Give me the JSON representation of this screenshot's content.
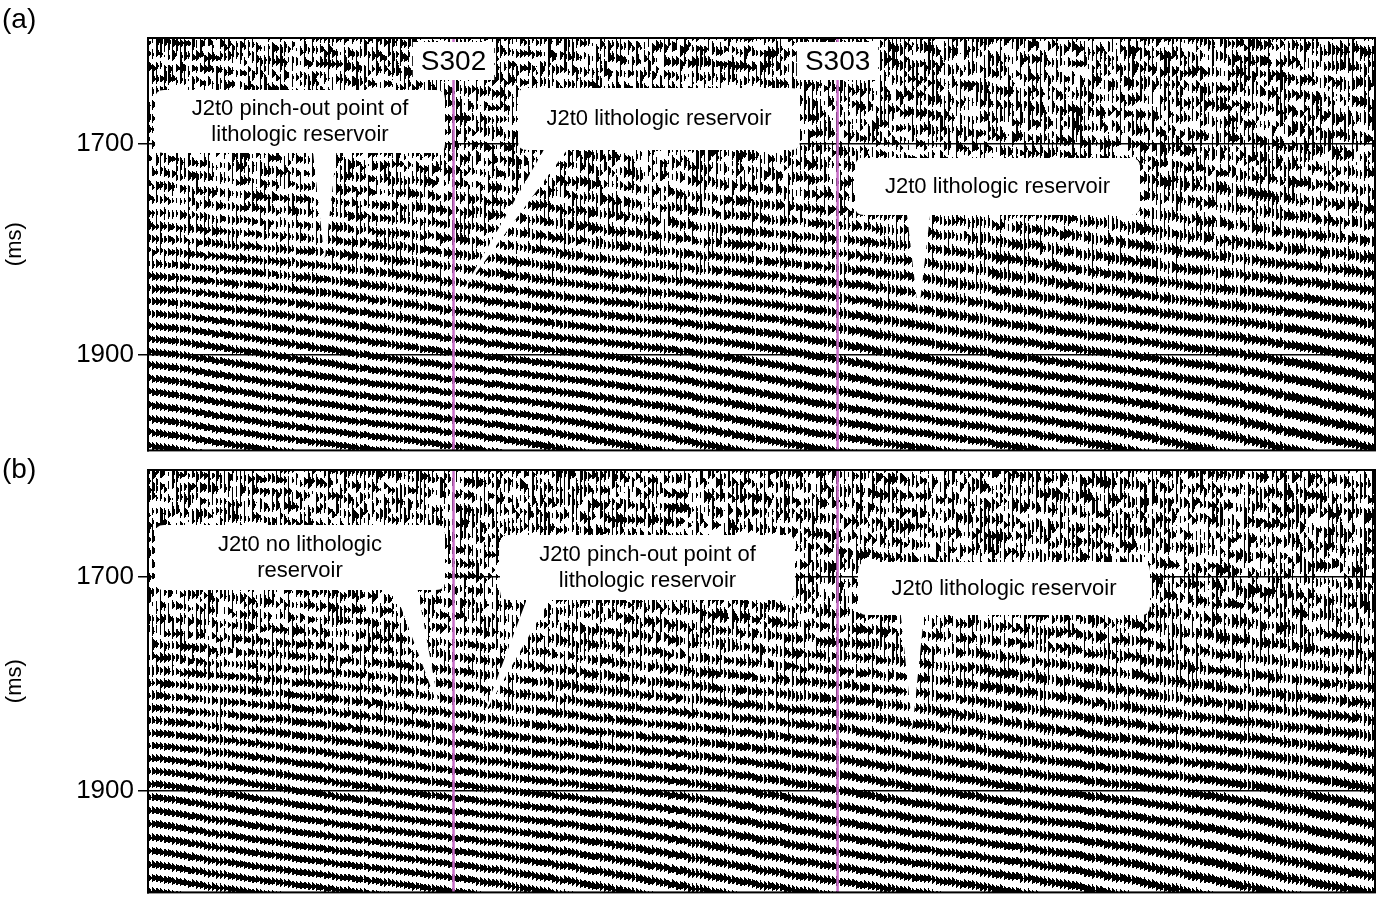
{
  "chart_data": [
    {
      "type": "seismic_section",
      "title": "(a)",
      "ylabel": "(ms)",
      "xlim": [
        0,
        1
      ],
      "ylim": [
        1600,
        1990
      ],
      "yticks": [
        1700,
        1900
      ],
      "tick_labels": "y",
      "grid": true,
      "wells": [
        {
          "name": "S302",
          "x": 0.249,
          "color": "#c86cc8"
        },
        {
          "name": "S303",
          "x": 0.562,
          "color": "#c86cc8"
        }
      ],
      "annotations": [
        {
          "text": [
            "J2t0 pinch-out point of",
            "lithologic reservoir"
          ],
          "x": 0.144,
          "y": 1811
        },
        {
          "text": [
            "J2t0 lithologic reservoir"
          ],
          "x": 0.256,
          "y": 1840
        },
        {
          "text": [
            "J2t0 lithologic reservoir"
          ],
          "x": 0.628,
          "y": 1862
        }
      ]
    },
    {
      "type": "seismic_section",
      "title": "(b)",
      "ylabel": "(ms)",
      "xlim": [
        0,
        1
      ],
      "ylim": [
        1600,
        1995
      ],
      "yticks": [
        1700,
        1900
      ],
      "tick_labels": "y",
      "grid": true,
      "wells": [
        {
          "x": 0.249,
          "color": "#c86cc8"
        },
        {
          "x": 0.562,
          "color": "#c86cc8"
        }
      ],
      "annotations": [
        {
          "text": [
            "J2t0 no lithologic",
            "reservoir"
          ],
          "x": 0.238,
          "y": 1826
        },
        {
          "text": [
            "J2t0 pinch-out point of",
            "lithologic reservoir"
          ],
          "x": 0.273,
          "y": 1830
        },
        {
          "text": [
            "J2t0 lithologic reservoir"
          ],
          "x": 0.623,
          "y": 1842
        }
      ]
    }
  ]
}
